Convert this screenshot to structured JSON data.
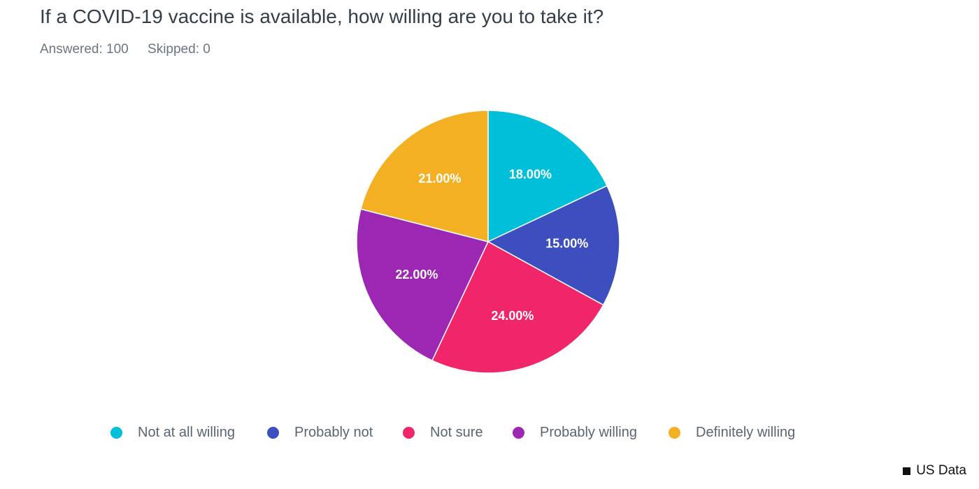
{
  "header": {
    "title": "If a COVID-19 vaccine is available, how willing are you to take it?",
    "answered": "Answered: 100",
    "skipped": "Skipped: 0"
  },
  "chart_data": {
    "type": "pie",
    "title": "If a COVID-19 vaccine is available, how willing are you to take it?",
    "categories": [
      "Not at all willing",
      "Probably not",
      "Not sure",
      "Probably willing",
      "Definitely willing"
    ],
    "values": [
      18,
      15,
      24,
      22,
      21
    ],
    "labels": [
      "18.00%",
      "15.00%",
      "24.00%",
      "22.00%",
      "21.00%"
    ],
    "colors": [
      "#00c0d9",
      "#3d4fbf",
      "#f0256a",
      "#9b27b3",
      "#f3b022"
    ],
    "legend_position": "bottom",
    "start_angle": "top, clockwise"
  },
  "legend": {
    "items": [
      {
        "label": "Not at all willing",
        "color": "#00c0d9"
      },
      {
        "label": "Probably not",
        "color": "#3d4fbf"
      },
      {
        "label": "Not sure",
        "color": "#f0256a"
      },
      {
        "label": "Probably willing",
        "color": "#9b27b3"
      },
      {
        "label": "Definitely willing",
        "color": "#f3b022"
      }
    ]
  },
  "footer": {
    "source": "US Data"
  }
}
